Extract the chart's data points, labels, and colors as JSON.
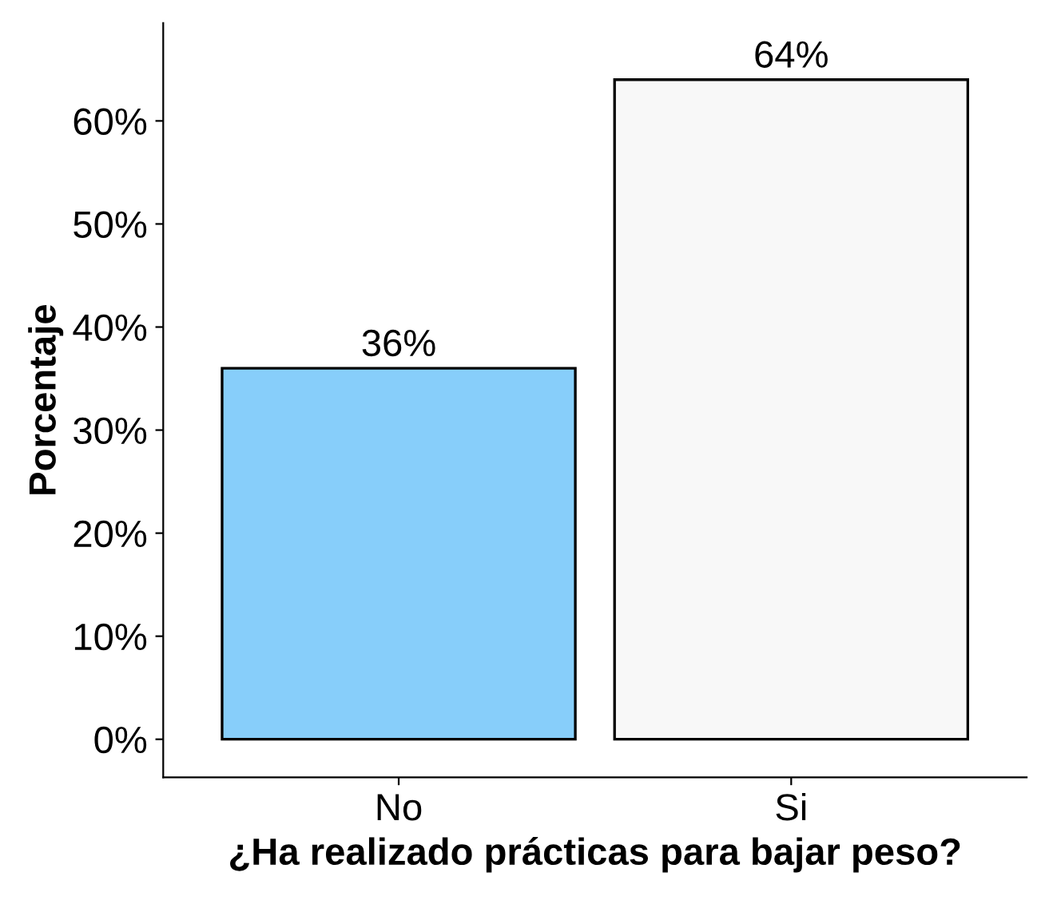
{
  "chart_data": {
    "type": "bar",
    "xlabel": "¿Ha realizado prácticas para bajar peso?",
    "ylabel": "Porcentaje",
    "categories": [
      "No",
      "Si"
    ],
    "values": [
      36,
      64
    ],
    "colors": [
      "#87cefa",
      "#f8f8f8"
    ],
    "value_labels": [
      "36%",
      "64%"
    ],
    "ylim": [
      -3.7,
      69.5
    ],
    "yticks": [
      {
        "value": 0,
        "label": "0%"
      },
      {
        "value": 10,
        "label": "10%"
      },
      {
        "value": 20,
        "label": "20%"
      },
      {
        "value": 30,
        "label": "30%"
      },
      {
        "value": 40,
        "label": "40%"
      },
      {
        "value": 50,
        "label": "50%"
      },
      {
        "value": 60,
        "label": "60%"
      }
    ],
    "grid": false,
    "legend": false
  }
}
